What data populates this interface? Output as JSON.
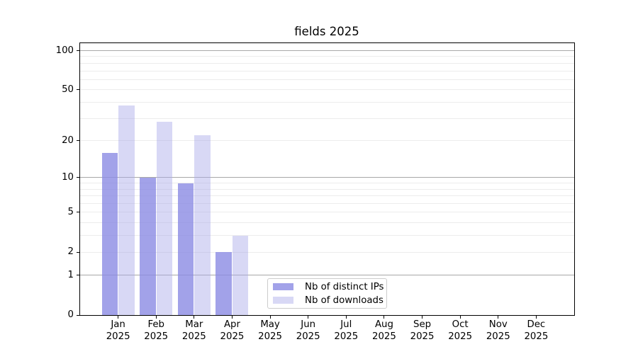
{
  "chart_data": {
    "type": "bar",
    "title": "fields 2025",
    "categories": [
      "Jan",
      "Feb",
      "Mar",
      "Apr",
      "May",
      "Jun",
      "Jul",
      "Aug",
      "Sep",
      "Oct",
      "Nov",
      "Dec"
    ],
    "year_label": "2025",
    "series": [
      {
        "name": "Nb of distinct IPs",
        "color": "rgba(139,139,228,0.8)",
        "values": [
          16,
          10,
          9,
          2,
          0,
          0,
          0,
          0,
          0,
          0,
          0,
          0
        ]
      },
      {
        "name": "Nb of downloads",
        "color": "rgba(168,168,233,0.45)",
        "values": [
          38,
          28,
          22,
          3,
          0,
          0,
          0,
          0,
          0,
          0,
          0,
          0
        ]
      }
    ],
    "yscale": "log1p",
    "ylim": [
      0,
      114
    ],
    "yticks": [
      0,
      1,
      2,
      5,
      10,
      20,
      50,
      100
    ],
    "major_gridlines": [
      1,
      10,
      100
    ],
    "minor_gridlines": [
      2,
      3,
      4,
      5,
      6,
      7,
      8,
      9,
      20,
      30,
      40,
      50,
      60,
      70,
      80,
      90
    ],
    "grid_major_color": "#a8a8a8",
    "grid_minor_color": "#ececec",
    "spine_color": "#000000",
    "legend_border_color": "#cccccc",
    "legend_position": "lower center"
  }
}
